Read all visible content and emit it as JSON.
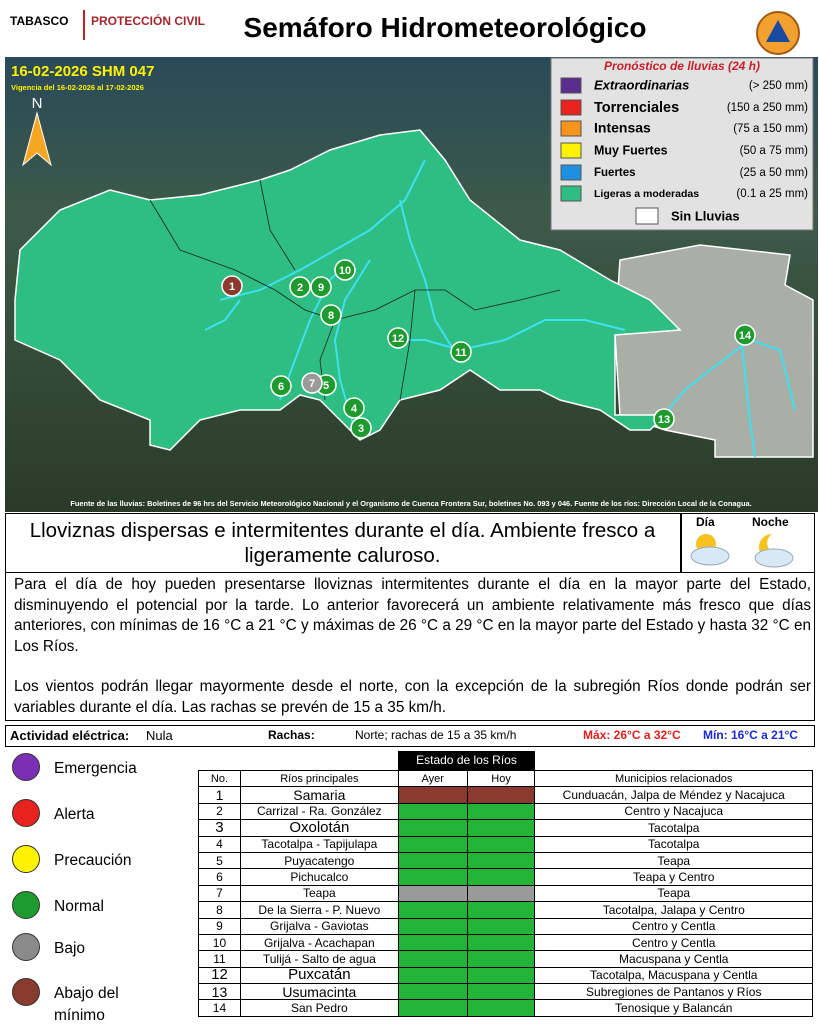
{
  "header": {
    "state": "TABASCO",
    "agency": "PROTECCIÓN CIVIL",
    "title": "Semáforo Hidrometeorológico"
  },
  "map": {
    "bulletin": "16-02-2026 SHM 047",
    "validity": "Vigencia del 16-02-2026 al 17-02-2026",
    "north": "N",
    "legend": {
      "title": "Pronóstico de lluvias (24 h)",
      "items": [
        {
          "label": "Extraordinarias",
          "range": "(> 250 mm)",
          "color": "#5b2d8e"
        },
        {
          "label": "Torrenciales",
          "range": "(150 a 250 mm)",
          "color": "#e8231f"
        },
        {
          "label": "Intensas",
          "range": "(75 a 150 mm)",
          "color": "#f7941d"
        },
        {
          "label": "Muy Fuertes",
          "range": "(50 a 75 mm)",
          "color": "#fff200"
        },
        {
          "label": "Fuertes",
          "range": "(25 a 50 mm)",
          "color": "#1e90e0"
        },
        {
          "label": "Ligeras a moderadas",
          "range": "(0.1 a 25 mm)",
          "color": "#2ebd82"
        }
      ],
      "no_rain": "Sin Lluvias"
    },
    "markers": [
      {
        "label": "1",
        "color": "#8b3a2e"
      },
      {
        "label": "2",
        "color": "#1f9a2e"
      },
      {
        "label": "3",
        "color": "#1f9a2e"
      },
      {
        "label": "4",
        "color": "#1f9a2e"
      },
      {
        "label": "5",
        "color": "#1f9a2e"
      },
      {
        "label": "6",
        "color": "#1f9a2e"
      },
      {
        "label": "7",
        "color": "#9a9a9a"
      },
      {
        "label": "8",
        "color": "#1f9a2e"
      },
      {
        "label": "9",
        "color": "#1f9a2e"
      },
      {
        "label": "10",
        "color": "#1f9a2e"
      },
      {
        "label": "11",
        "color": "#1f9a2e"
      },
      {
        "label": "12",
        "color": "#1f9a2e"
      },
      {
        "label": "13",
        "color": "#1f9a2e"
      },
      {
        "label": "14",
        "color": "#1f9a2e"
      }
    ],
    "source": "Fuente de las lluvias: Boletines de 96 hrs del Servicio Meteorológico Nacional y el Organismo de Cuenca Frontera Sur, boletines No. 093 y 046. Fuente de los ríos: Dirección Local de la Conagua."
  },
  "summary": {
    "headline": "Lloviznas dispersas e intermitentes durante el día. Ambiente fresco a ligeramente caluroso.",
    "day": "Día",
    "night": "Noche"
  },
  "body": {
    "paragraphs": [
      "Para el día de hoy pueden presentarse lloviznas intermitentes durante el día en la mayor parte del Estado, disminuyendo el potencial por la tarde. Lo anterior favorecerá un ambiente relativamente más fresco que días anteriores, con mínimas de 16 °C a 21 °C y máximas de 26 °C a 29 °C en la mayor parte del Estado y hasta 32 °C en Los Ríos.",
      "Los vientos podrán llegar mayormente desde el norte, con la excepción de la subregión Ríos donde podrán ser variables durante el día. Las rachas se prevén de 15 a 35 km/h."
    ]
  },
  "info": {
    "electric_label": "Actividad eléctrica:",
    "electric_value": "Nula",
    "gusts_label": "Rachas:",
    "gusts_value": "Norte; rachas de 15 a 35 km/h",
    "max": "Máx: 26°C a 32°C",
    "min": "Mín: 16°C a 21°C"
  },
  "status_legend": [
    {
      "label": "Emergencia",
      "color": "#7a2fb5"
    },
    {
      "label": "Alerta",
      "color": "#e8231f"
    },
    {
      "label": "Precaución",
      "color": "#fff200"
    },
    {
      "label": "Normal",
      "color": "#1f9a2e"
    },
    {
      "label": "Bajo",
      "color": "#8a8a8a"
    },
    {
      "label": "Abajo del mínimo",
      "color": "#8b3a2e"
    }
  ],
  "table": {
    "title": "Estado de los Ríos",
    "headers": [
      "No.",
      "Ríos principales",
      "Ayer",
      "Hoy",
      "Municipios relacionados"
    ],
    "rows": [
      {
        "no": 1,
        "river": "Samaria",
        "ayer": "#8b3a2e",
        "hoy": "#8b3a2e",
        "municipalities": "Cunduacán, Jalpa de Méndez y Nacajuca"
      },
      {
        "no": 2,
        "river": "Carrizal - Ra. González",
        "ayer": "#22b537",
        "hoy": "#22b537",
        "municipalities": "Centro y Nacajuca"
      },
      {
        "no": 3,
        "river": "Oxolotán",
        "ayer": "#22b537",
        "hoy": "#22b537",
        "municipalities": "Tacotalpa"
      },
      {
        "no": 4,
        "river": "Tacotalpa - Tapijulapa",
        "ayer": "#22b537",
        "hoy": "#22b537",
        "municipalities": "Tacotalpa"
      },
      {
        "no": 5,
        "river": "Puyacatengo",
        "ayer": "#22b537",
        "hoy": "#22b537",
        "municipalities": "Teapa"
      },
      {
        "no": 6,
        "river": "Pichucalco",
        "ayer": "#22b537",
        "hoy": "#22b537",
        "municipalities": "Teapa y Centro"
      },
      {
        "no": 7,
        "river": "Teapa",
        "ayer": "#9a9a9a",
        "hoy": "#9a9a9a",
        "municipalities": "Teapa"
      },
      {
        "no": 8,
        "river": "De la Sierra - P. Nuevo",
        "ayer": "#22b537",
        "hoy": "#22b537",
        "municipalities": "Tacotalpa, Jalapa y Centro"
      },
      {
        "no": 9,
        "river": "Grijalva - Gaviotas",
        "ayer": "#22b537",
        "hoy": "#22b537",
        "municipalities": "Centro y Centla"
      },
      {
        "no": 10,
        "river": "Grijalva - Acachapan",
        "ayer": "#22b537",
        "hoy": "#22b537",
        "municipalities": "Centro y Centla"
      },
      {
        "no": 11,
        "river": "Tulijá - Salto de agua",
        "ayer": "#22b537",
        "hoy": "#22b537",
        "municipalities": "Macuspana y Centla"
      },
      {
        "no": 12,
        "river": "Puxcatán",
        "ayer": "#22b537",
        "hoy": "#22b537",
        "municipalities": "Tacotalpa, Macuspana y Centla"
      },
      {
        "no": 13,
        "river": "Usumacinta",
        "ayer": "#22b537",
        "hoy": "#22b537",
        "municipalities": "Subregiones de Pantanos y Ríos"
      },
      {
        "no": 14,
        "river": "San Pedro",
        "ayer": "#22b537",
        "hoy": "#22b537",
        "municipalities": "Tenosique y Balancán"
      }
    ]
  }
}
